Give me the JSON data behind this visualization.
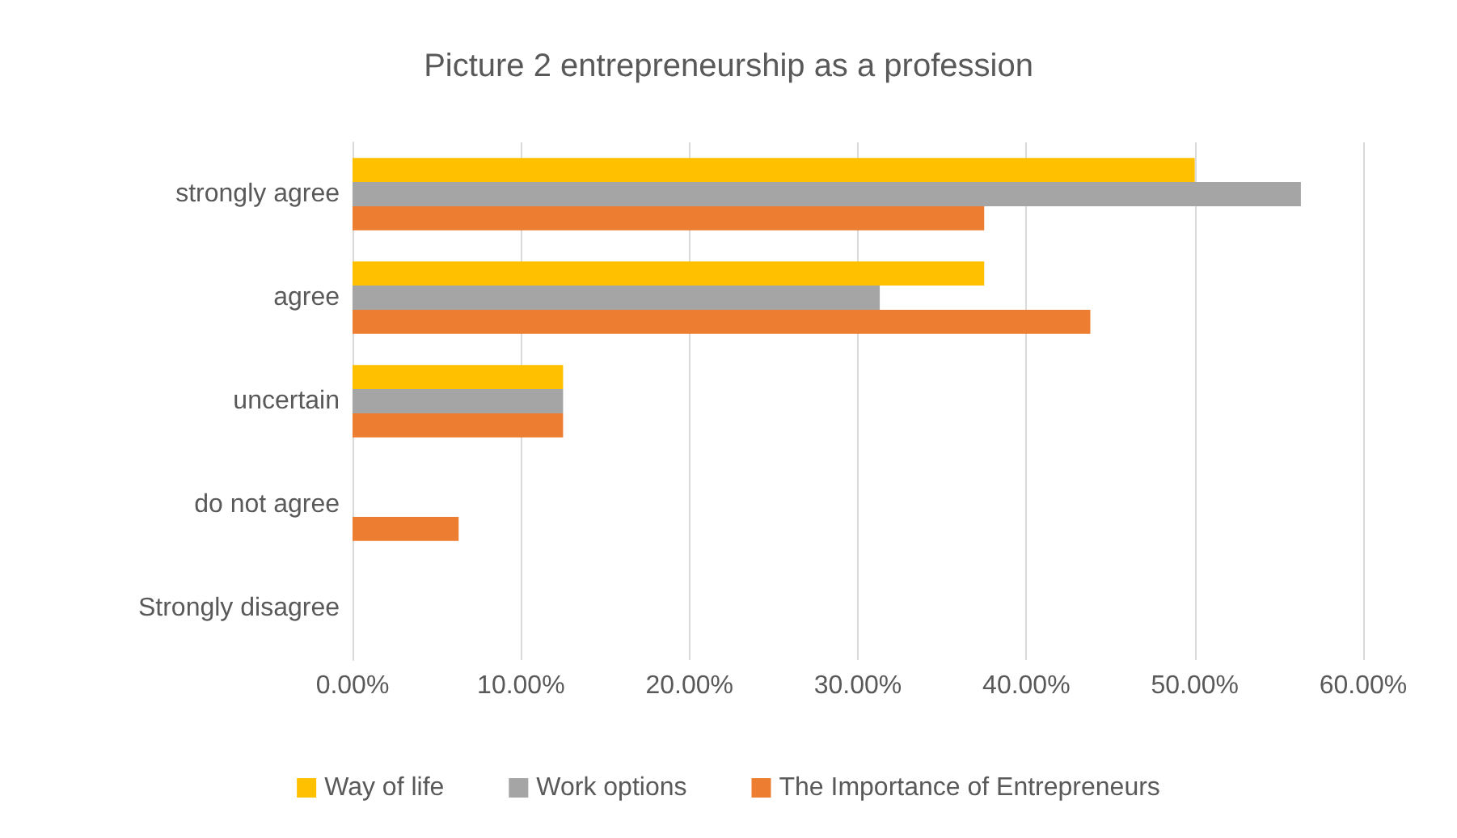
{
  "chart_data": {
    "type": "bar",
    "orientation": "horizontal",
    "title": "Picture 2 entrepreneurship as a profession",
    "categories": [
      "strongly agree",
      "agree",
      "uncertain",
      "do not agree",
      "Strongly disagree"
    ],
    "series": [
      {
        "name": "Way of life",
        "color": "#ffc000",
        "values": [
          50,
          37.5,
          12.5,
          0,
          0
        ]
      },
      {
        "name": "Work options",
        "color": "#a5a5a5",
        "values": [
          56.3,
          31.3,
          12.5,
          0,
          0
        ]
      },
      {
        "name": "The Importance of Entrepreneurs",
        "color": "#ed7d31",
        "values": [
          37.5,
          43.8,
          12.5,
          6.3,
          0
        ]
      }
    ],
    "xlim": [
      0,
      60
    ],
    "xticks": [
      {
        "value": 0,
        "label": "0.00%"
      },
      {
        "value": 10,
        "label": "10.00%"
      },
      {
        "value": 20,
        "label": "20.00%"
      },
      {
        "value": 30,
        "label": "30.00%"
      },
      {
        "value": 40,
        "label": "40.00%"
      },
      {
        "value": 50,
        "label": "50.00%"
      },
      {
        "value": 60,
        "label": "60.00%"
      }
    ],
    "grid": "x",
    "legend": "bottom"
  }
}
